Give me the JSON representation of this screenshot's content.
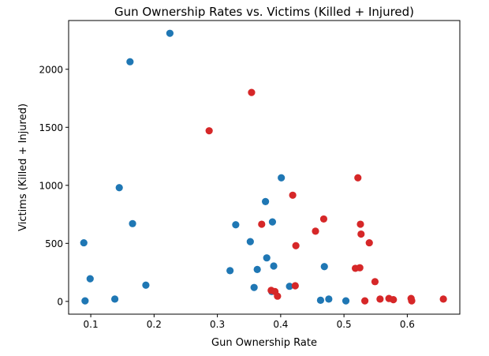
{
  "chart_data": {
    "type": "scatter",
    "title": "Gun Ownership Rates vs. Victims (Killed + Injured)",
    "xlabel": "Gun Ownership Rate",
    "ylabel": "Victims (Killed + Injured)",
    "xlim": [
      0.065,
      0.683
    ],
    "ylim": [
      -110,
      2420
    ],
    "xticks": [
      0.1,
      0.2,
      0.3,
      0.4,
      0.5,
      0.6
    ],
    "xtick_labels": [
      "0.1",
      "0.2",
      "0.3",
      "0.4",
      "0.5",
      "0.6"
    ],
    "yticks": [
      0,
      500,
      1000,
      1500,
      2000
    ],
    "ytick_labels": [
      "0",
      "500",
      "1000",
      "1500",
      "2000"
    ],
    "grid": false,
    "series": [
      {
        "color": "#1f77b4",
        "points": [
          [
            0.089,
            505
          ],
          [
            0.091,
            5
          ],
          [
            0.099,
            195
          ],
          [
            0.138,
            20
          ],
          [
            0.145,
            980
          ],
          [
            0.162,
            2065
          ],
          [
            0.166,
            670
          ],
          [
            0.187,
            140
          ],
          [
            0.225,
            2310
          ],
          [
            0.32,
            265
          ],
          [
            0.329,
            660
          ],
          [
            0.352,
            515
          ],
          [
            0.358,
            120
          ],
          [
            0.363,
            275
          ],
          [
            0.376,
            860
          ],
          [
            0.378,
            375
          ],
          [
            0.386,
            85
          ],
          [
            0.387,
            685
          ],
          [
            0.389,
            305
          ],
          [
            0.401,
            1065
          ],
          [
            0.414,
            130
          ],
          [
            0.463,
            10
          ],
          [
            0.469,
            300
          ],
          [
            0.476,
            20
          ],
          [
            0.503,
            5
          ]
        ]
      },
      {
        "color": "#d62728",
        "points": [
          [
            0.287,
            1470
          ],
          [
            0.354,
            1800
          ],
          [
            0.37,
            665
          ],
          [
            0.385,
            95
          ],
          [
            0.391,
            85
          ],
          [
            0.395,
            45
          ],
          [
            0.419,
            915
          ],
          [
            0.423,
            135
          ],
          [
            0.424,
            480
          ],
          [
            0.455,
            605
          ],
          [
            0.468,
            710
          ],
          [
            0.518,
            285
          ],
          [
            0.522,
            1065
          ],
          [
            0.525,
            290
          ],
          [
            0.526,
            665
          ],
          [
            0.527,
            580
          ],
          [
            0.533,
            5
          ],
          [
            0.54,
            505
          ],
          [
            0.549,
            170
          ],
          [
            0.557,
            20
          ],
          [
            0.571,
            25
          ],
          [
            0.578,
            15
          ],
          [
            0.606,
            25
          ],
          [
            0.607,
            5
          ],
          [
            0.657,
            20
          ]
        ]
      }
    ]
  }
}
